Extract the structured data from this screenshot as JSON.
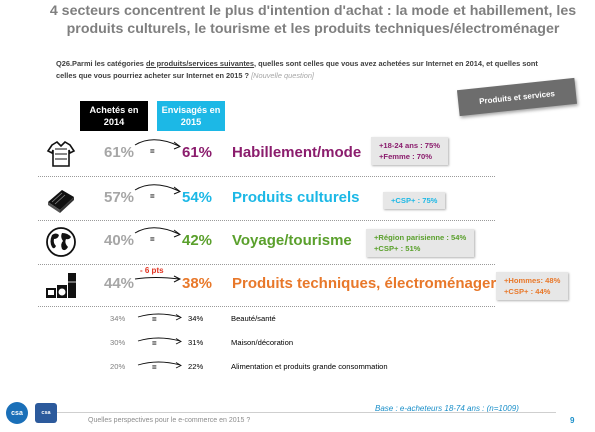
{
  "title": "4 secteurs concentrent le plus d'intention d'achat : la mode et habillement, les produits culturels, le tourisme et les produits techniques/électroménager",
  "question": {
    "prefix": "Q26.Parmi les catégories ",
    "underlined": "de produits/services suivantes",
    "body": ", quelles sont celles que vous avez achetées sur Internet en 2014, et quelles sont celles que vous pourriez acheter sur Internet en 2015 ?",
    "new_tag": "[Nouvelle question]"
  },
  "ribbon": "Produits et services",
  "headers": {
    "bought": "Achetés en 2014",
    "planned": "Envisagés en 2015"
  },
  "colors": {
    "mode": "#8b1d6d",
    "culture": "#1cb8e6",
    "voyage": "#5aa02c",
    "tech": "#e8782a",
    "header_cyan": "#1cb8e6",
    "delta": "#e0301e"
  },
  "top_rows": [
    {
      "icon": "clothing-icon",
      "pct_2014": "61%",
      "eq": "=",
      "delta": "",
      "pct_2015": "61%",
      "label": "Habillement/mode",
      "badge": [
        "+18-24 ans : 75%",
        "+Femme : 70%"
      ]
    },
    {
      "icon": "book-icon",
      "pct_2014": "57%",
      "eq": "=",
      "delta": "",
      "pct_2015": "54%",
      "label": "Produits culturels",
      "badge": [
        "+CSP+ : 75%"
      ]
    },
    {
      "icon": "globe-icon",
      "pct_2014": "40%",
      "eq": "=",
      "delta": "",
      "pct_2015": "42%",
      "label": "Voyage/tourisme",
      "badge": [
        "+Région parisienne : 54%",
        "+CSP+ : 51%"
      ]
    },
    {
      "icon": "appliances-icon",
      "pct_2014": "44%",
      "eq": "",
      "delta": "- 6 pts",
      "pct_2015": "38%",
      "label": "Produits techniques, électroménager",
      "badge": [
        "+Hommes: 48%",
        "+CSP+ : 44%"
      ]
    }
  ],
  "small_rows": [
    {
      "pct_2014": "34%",
      "eq": "=",
      "pct_2015": "34%",
      "label": "Beauté/santé"
    },
    {
      "pct_2014": "30%",
      "eq": "=",
      "pct_2015": "31%",
      "label": "Maison/décoration"
    },
    {
      "pct_2014": "20%",
      "eq": "=",
      "pct_2015": "22%",
      "label": "Alimentation et produits grande consommation"
    }
  ],
  "base": "Base : e-acheteurs 18-74 ans : (n=1009)",
  "footer": "Quelles perspectives pour le e-commerce en 2015 ?",
  "page_number": "9",
  "logos": {
    "csa": "csa",
    "partner": "csa"
  }
}
